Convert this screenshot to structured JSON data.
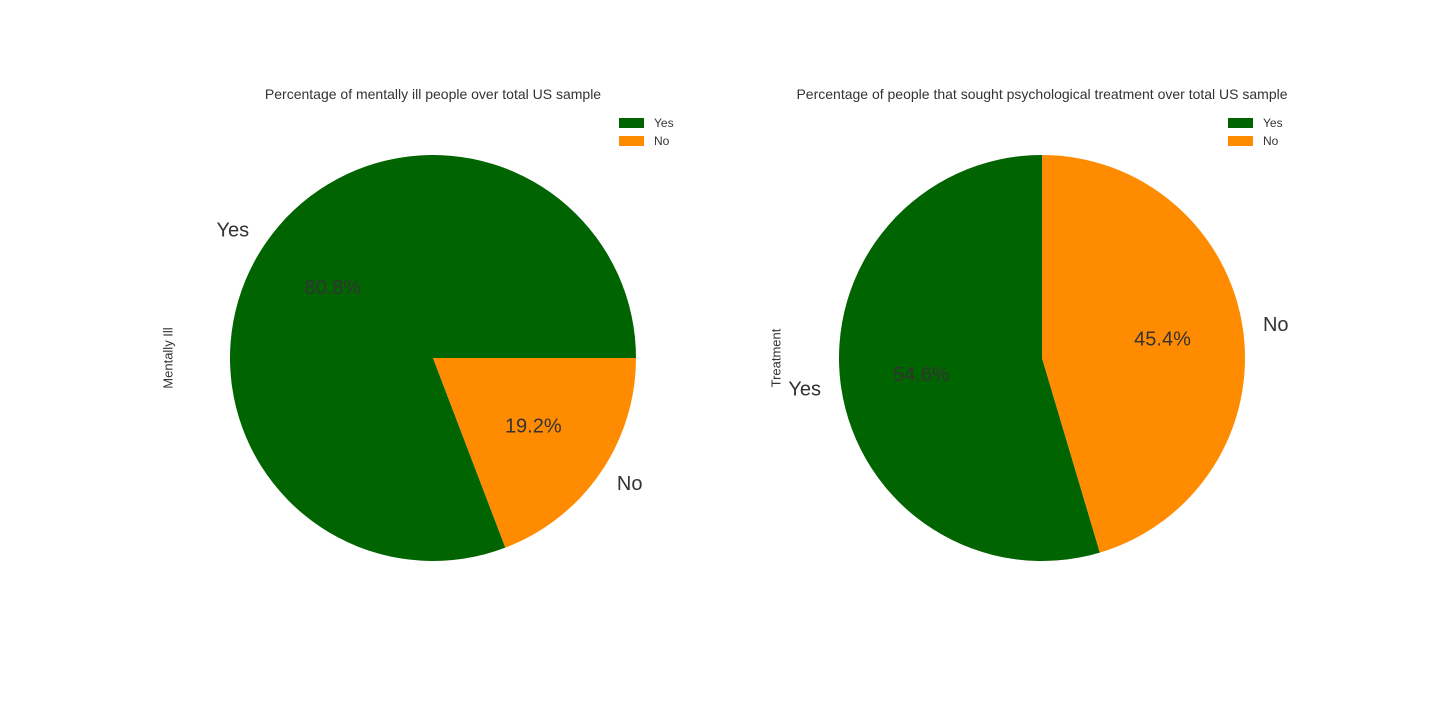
{
  "chart_data": [
    {
      "type": "pie",
      "title": "Percentage of mentally ill people over total US sample",
      "ylabel": "Mentally Ill",
      "categories": [
        "Yes",
        "No"
      ],
      "values": [
        80.8,
        19.2
      ],
      "autopct_labels": [
        "80.8%",
        "19.2%"
      ],
      "colors": [
        "#006400",
        "#ff8c00"
      ],
      "start_angle_deg": 0,
      "legend_placement": "top-right",
      "legend": [
        "Yes",
        "No"
      ]
    },
    {
      "type": "pie",
      "title": "Percentage of people that sought psychological treatment over total US sample",
      "ylabel": "Treatment",
      "categories": [
        "Yes",
        "No"
      ],
      "values": [
        54.6,
        45.4
      ],
      "autopct_labels": [
        "54.6%",
        "45.4%"
      ],
      "colors": [
        "#006400",
        "#ff8c00"
      ],
      "start_angle_deg": 90,
      "legend_placement": "top-right",
      "legend": [
        "Yes",
        "No"
      ]
    }
  ]
}
